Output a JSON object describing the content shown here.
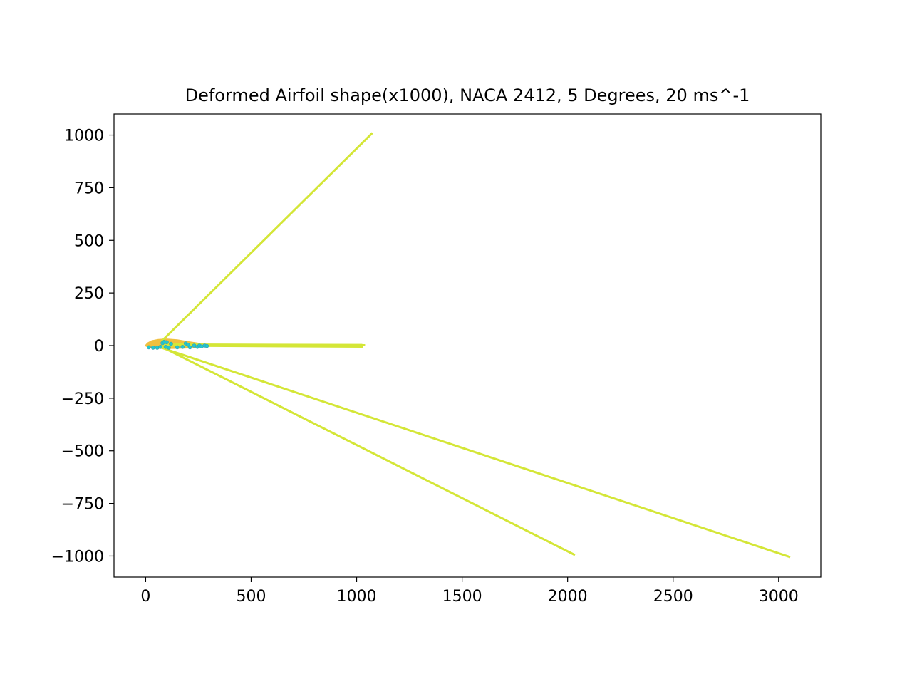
{
  "chart_data": {
    "type": "line",
    "title": "Deformed Airfoil shape(x1000), NACA 2412, 5 Degrees, 20 ms^-1",
    "xlabel": "",
    "ylabel": "",
    "xlim": [
      -150,
      3200
    ],
    "ylim": [
      -1100,
      1100
    ],
    "xticks": [
      0,
      500,
      1000,
      1500,
      2000,
      2500,
      3000
    ],
    "xtick_labels": [
      "0",
      "500",
      "1000",
      "1500",
      "2000",
      "2500",
      "3000"
    ],
    "yticks": [
      1000,
      750,
      500,
      250,
      0,
      -250,
      -500,
      -750,
      -1000
    ],
    "ytick_labels": [
      "1000",
      "750",
      "500",
      "250",
      "0",
      "−250",
      "−500",
      "−750",
      "−1000"
    ],
    "grid": false,
    "legend": "none",
    "airfoil": {
      "color": "#f0c040",
      "upper": [
        [
          0,
          0
        ],
        [
          10,
          12
        ],
        [
          30,
          22
        ],
        [
          60,
          28
        ],
        [
          100,
          30
        ],
        [
          150,
          26
        ],
        [
          200,
          18
        ],
        [
          250,
          10
        ],
        [
          300,
          2
        ]
      ],
      "lower": [
        [
          300,
          2
        ],
        [
          250,
          -6
        ],
        [
          200,
          -10
        ],
        [
          150,
          -12
        ],
        [
          100,
          -13
        ],
        [
          60,
          -12
        ],
        [
          30,
          -9
        ],
        [
          10,
          -5
        ],
        [
          0,
          0
        ]
      ]
    },
    "markers": {
      "color": "#20c8d0",
      "points": [
        [
          15,
          -8
        ],
        [
          35,
          -10
        ],
        [
          55,
          -10
        ],
        [
          70,
          -6
        ],
        [
          80,
          12
        ],
        [
          88,
          18
        ],
        [
          95,
          -6
        ],
        [
          100,
          16
        ],
        [
          110,
          -10
        ],
        [
          120,
          8
        ],
        [
          150,
          -8
        ],
        [
          175,
          -6
        ],
        [
          190,
          10
        ],
        [
          200,
          4
        ],
        [
          210,
          -8
        ],
        [
          230,
          0
        ],
        [
          245,
          -6
        ],
        [
          255,
          0
        ],
        [
          265,
          -4
        ],
        [
          280,
          0
        ],
        [
          290,
          -2
        ]
      ]
    },
    "series": [
      {
        "color": "#d4e637",
        "x": [
          75,
          1075
        ],
        "y": [
          20,
          1010
        ]
      },
      {
        "color": "#d4e637",
        "x": [
          75,
          1040
        ],
        "y": [
          5,
          3
        ]
      },
      {
        "color": "#d4e637",
        "x": [
          75,
          1030
        ],
        "y": [
          0,
          -5
        ]
      },
      {
        "color": "#d4e637",
        "x": [
          75,
          3055
        ],
        "y": [
          -10,
          -1005
        ]
      },
      {
        "color": "#d4e637",
        "x": [
          75,
          2035
        ],
        "y": [
          -5,
          -995
        ]
      }
    ]
  }
}
